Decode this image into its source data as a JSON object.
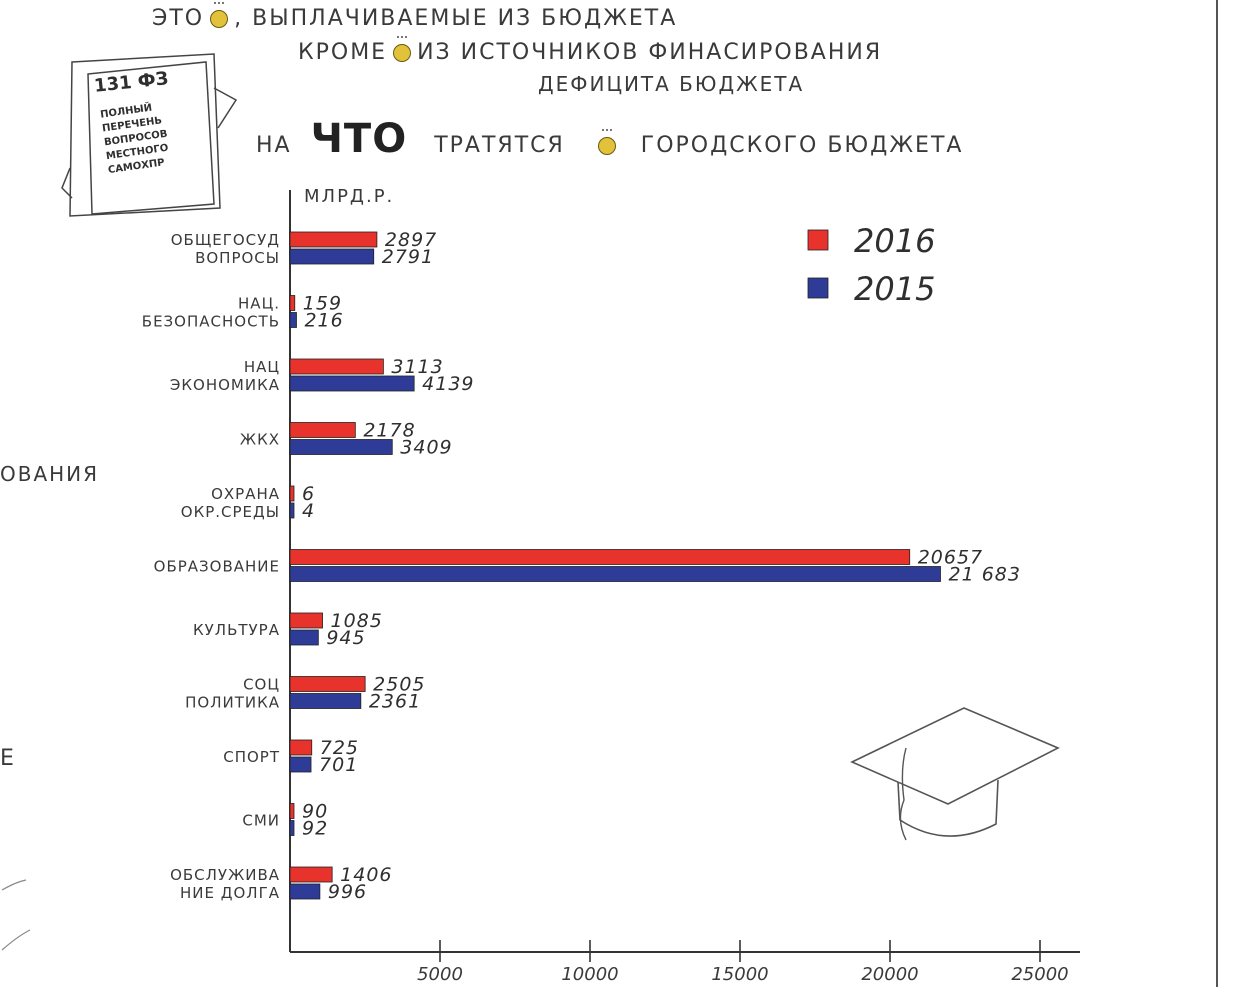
{
  "header": {
    "line1_a": "ЭТО",
    "line1_b": ", ВЫПЛАЧИВАЕМЫЕ ИЗ БЮДЖЕТА",
    "line2_a": "КРОМЕ",
    "line2_b": "ИЗ ИСТОЧНИКОВ ФИНАСИРОВАНИЯ",
    "line3": "ДЕФИЦИТА БЮДЖЕТА"
  },
  "note": {
    "title": "131 ФЗ",
    "lines": [
      "ПОЛНЫЙ",
      "ПЕРЕЧЕНЬ",
      "ВОПРОСОВ",
      "МЕСТНОГО",
      "САМОХПР"
    ]
  },
  "side_fragments": {
    "a": "ОВАНИЯ",
    "b": "Е"
  },
  "chart_data": {
    "type": "bar",
    "orientation": "horizontal",
    "title_parts": [
      "НА",
      "ЧТО",
      "ТРАТЯТСЯ",
      "ГОРОДСКОГО БЮДЖЕТА"
    ],
    "unit_label": "МЛРД.Р.",
    "categories": [
      [
        "ОБЩЕГОСУД",
        "ВОПРОСЫ"
      ],
      [
        "НАЦ.",
        "БЕЗОПАСНОСТЬ"
      ],
      [
        "НАЦ",
        "ЭКОНОМИКА"
      ],
      [
        "ЖКХ"
      ],
      [
        "ОХРАНА",
        "ОКР.СРЕДЫ"
      ],
      [
        "ОБРАЗОВАНИЕ"
      ],
      [
        "КУЛЬТУРА"
      ],
      [
        "СОЦ",
        "ПОЛИТИКА"
      ],
      [
        "СПОРТ"
      ],
      [
        "СМИ"
      ],
      [
        "ОБСЛУЖИВА",
        "НИЕ ДОЛГА"
      ]
    ],
    "series": [
      {
        "name": "2016",
        "color": "#e8322c",
        "values": [
          2897,
          159,
          3113,
          2178,
          6,
          20657,
          1085,
          2505,
          725,
          90,
          1406
        ],
        "labels": [
          "2897",
          "159",
          "3113",
          "2178",
          "6",
          "20657",
          "1085",
          "2505",
          "725",
          "90",
          "1406"
        ]
      },
      {
        "name": "2015",
        "color": "#2e3c97",
        "values": [
          2791,
          216,
          4139,
          3409,
          4,
          21683,
          945,
          2361,
          701,
          92,
          996
        ],
        "labels": [
          "2791",
          "216",
          "4139",
          "3409",
          "4",
          "21 683",
          "945",
          "2361",
          "701",
          "92",
          "996"
        ]
      }
    ],
    "xticks": [
      5000,
      10000,
      15000,
      20000,
      25000
    ],
    "xlim": [
      0,
      25000
    ],
    "grid": false,
    "legend": "top-right"
  }
}
